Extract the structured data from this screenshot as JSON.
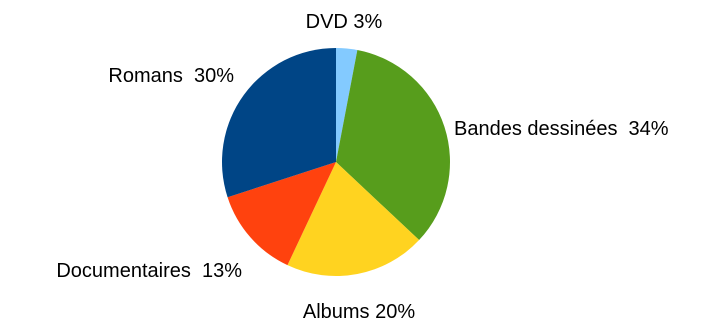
{
  "chart_data": {
    "type": "pie",
    "title": "",
    "start_angle_deg": 0,
    "direction": "clockwise",
    "slices": [
      {
        "label": "DVD",
        "value": 3,
        "display": "DVD 3%",
        "color": "#83caff"
      },
      {
        "label": "Bandes dessinées",
        "value": 34,
        "display": "Bandes dessinées  34%",
        "color": "#579d1c"
      },
      {
        "label": "Albums",
        "value": 20,
        "display": "Albums 20%",
        "color": "#ffd320"
      },
      {
        "label": "Documentaires",
        "value": 13,
        "display": "Documentaires  13%",
        "color": "#ff420e"
      },
      {
        "label": "Romans",
        "value": 30,
        "display": "Romans  30%",
        "color": "#004586"
      }
    ]
  }
}
